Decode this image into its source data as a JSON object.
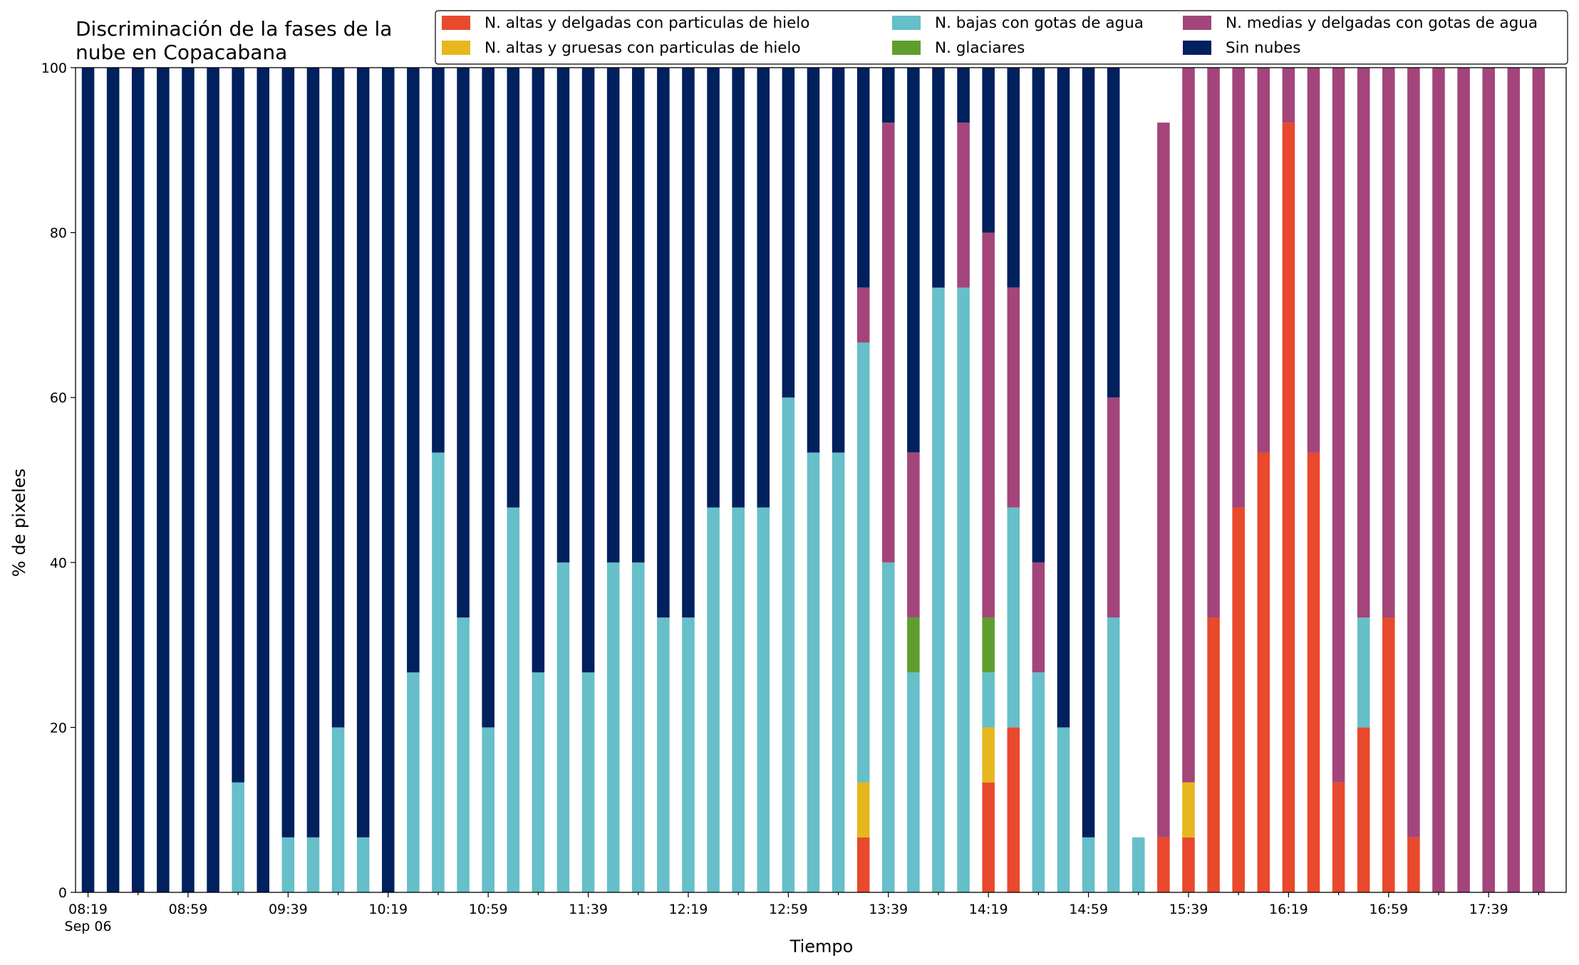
{
  "chart_data": {
    "type": "bar",
    "stacked": true,
    "title_lines": [
      "Discriminación de la fases de la",
      "nube en Copacabana"
    ],
    "xlabel": "Tiempo",
    "ylabel": "% de pixeles",
    "ylim": [
      0,
      100
    ],
    "yticks": [
      "0",
      "20",
      "40",
      "60",
      "80",
      "100"
    ],
    "x_tick_labels": [
      {
        "index": 0,
        "lines": [
          "08:19",
          "Sep 06"
        ]
      },
      {
        "index": 4,
        "lines": [
          "08:59"
        ]
      },
      {
        "index": 8,
        "lines": [
          "09:39"
        ]
      },
      {
        "index": 12,
        "lines": [
          "10:19"
        ]
      },
      {
        "index": 16,
        "lines": [
          "10:59"
        ]
      },
      {
        "index": 20,
        "lines": [
          "11:39"
        ]
      },
      {
        "index": 24,
        "lines": [
          "12:19"
        ]
      },
      {
        "index": 28,
        "lines": [
          "12:59"
        ]
      },
      {
        "index": 32,
        "lines": [
          "13:39"
        ]
      },
      {
        "index": 36,
        "lines": [
          "14:19"
        ]
      },
      {
        "index": 40,
        "lines": [
          "14:59"
        ]
      },
      {
        "index": 44,
        "lines": [
          "15:39"
        ]
      },
      {
        "index": 48,
        "lines": [
          "16:19"
        ]
      },
      {
        "index": 52,
        "lines": [
          "16:59"
        ]
      },
      {
        "index": 56,
        "lines": [
          "17:39"
        ]
      }
    ],
    "grid": false,
    "legend_position": "top-right",
    "series": [
      {
        "name": "N. altas y delgadas con particulas de hielo",
        "color": "#e9492c",
        "values": [
          0,
          0,
          0,
          0,
          0,
          0,
          0,
          0,
          0,
          0,
          0,
          0,
          0,
          0,
          0,
          0,
          0,
          0,
          0,
          0,
          0,
          0,
          0,
          0,
          0,
          0,
          0,
          0,
          0,
          0,
          0,
          6.67,
          0,
          0,
          0,
          0,
          13.33,
          20,
          0,
          0,
          0,
          0,
          0,
          6.67,
          6.67,
          33.33,
          46.67,
          53.33,
          93.33,
          53.33,
          13.33,
          20,
          33.33,
          6.67,
          0,
          0,
          0,
          0,
          0
        ]
      },
      {
        "name": "N. altas y gruesas con particulas de hielo",
        "color": "#e6b71e",
        "values": [
          0,
          0,
          0,
          0,
          0,
          0,
          0,
          0,
          0,
          0,
          0,
          0,
          0,
          0,
          0,
          0,
          0,
          0,
          0,
          0,
          0,
          0,
          0,
          0,
          0,
          0,
          0,
          0,
          0,
          0,
          0,
          6.67,
          0,
          0,
          0,
          0,
          6.67,
          0,
          0,
          0,
          0,
          0,
          0,
          0,
          6.67,
          0,
          0,
          0,
          0,
          0,
          0,
          0,
          0,
          0,
          0,
          0,
          0,
          0,
          0
        ]
      },
      {
        "name": "N. bajas con gotas de agua",
        "color": "#66bfc9",
        "values": [
          0,
          0,
          0,
          0,
          0,
          0,
          13.33,
          0,
          6.67,
          6.67,
          20,
          6.67,
          0,
          26.67,
          53.33,
          33.33,
          20,
          46.67,
          26.67,
          40,
          26.67,
          40,
          40,
          33.33,
          33.33,
          46.67,
          46.67,
          46.67,
          60,
          53.33,
          53.33,
          53.33,
          40,
          26.67,
          73.33,
          73.33,
          6.67,
          26.67,
          26.67,
          20,
          6.67,
          33.33,
          6.67,
          0,
          0,
          0,
          0,
          0,
          0,
          0,
          0,
          13.33,
          0,
          0,
          0,
          0,
          0,
          0,
          0
        ]
      },
      {
        "name": "N. glaciares",
        "color": "#5e9e2e",
        "values": [
          0,
          0,
          0,
          0,
          0,
          0,
          0,
          0,
          0,
          0,
          0,
          0,
          0,
          0,
          0,
          0,
          0,
          0,
          0,
          0,
          0,
          0,
          0,
          0,
          0,
          0,
          0,
          0,
          0,
          0,
          0,
          0,
          0,
          6.67,
          0,
          0,
          6.67,
          0,
          0,
          0,
          0,
          0,
          0,
          0,
          0,
          0,
          0,
          0,
          0,
          0,
          0,
          0,
          0,
          0,
          0,
          0,
          0,
          0,
          0
        ]
      },
      {
        "name": "N. medias y delgadas con gotas de agua",
        "color": "#a3457a",
        "values": [
          0,
          0,
          0,
          0,
          0,
          0,
          0,
          0,
          0,
          0,
          0,
          0,
          0,
          0,
          0,
          0,
          0,
          0,
          0,
          0,
          0,
          0,
          0,
          0,
          0,
          0,
          0,
          0,
          0,
          0,
          0,
          6.67,
          53.33,
          20,
          0,
          20,
          46.67,
          26.67,
          13.33,
          0,
          0,
          26.67,
          0,
          86.67,
          86.67,
          66.67,
          53.33,
          46.67,
          6.67,
          46.67,
          86.67,
          66.67,
          66.67,
          93.33,
          100,
          100,
          100,
          100,
          100
        ]
      },
      {
        "name": "Sin nubes",
        "color": "#01205e",
        "values": [
          100,
          100,
          100,
          100,
          100,
          100,
          86.67,
          100,
          93.33,
          93.33,
          80,
          93.33,
          100,
          73.33,
          46.67,
          66.67,
          80,
          53.33,
          73.33,
          60,
          73.33,
          60,
          60,
          66.67,
          66.67,
          53.33,
          53.33,
          53.33,
          40,
          46.67,
          46.67,
          26.67,
          6.67,
          46.67,
          26.67,
          6.67,
          20,
          26.67,
          60,
          80,
          93.33,
          40,
          0,
          0,
          0,
          0,
          0,
          0,
          0,
          0,
          0,
          0,
          0,
          0,
          0,
          0,
          0,
          0,
          0
        ]
      }
    ]
  }
}
